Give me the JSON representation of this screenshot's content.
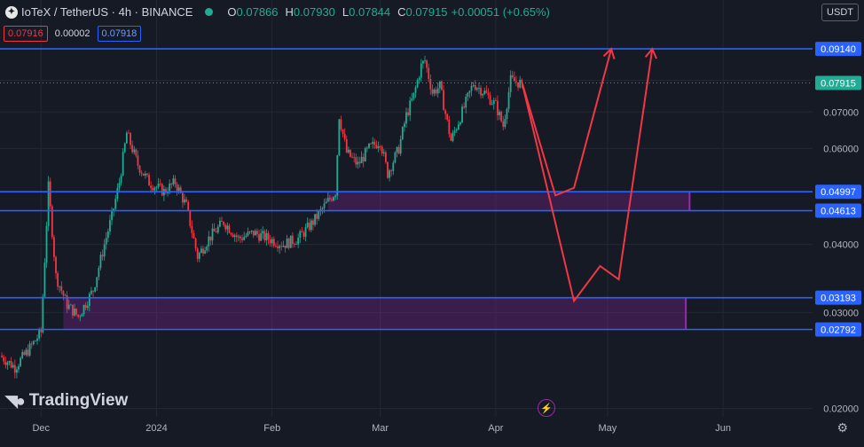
{
  "header": {
    "symbol_icon": "iotex-logo-icon",
    "title": "IoTeX / TetherUS · 4h · BINANCE",
    "status_color": "#22ab94",
    "ohlc": {
      "o_label": "O",
      "o": "0.07866",
      "h_label": "H",
      "h": "0.07930",
      "l_label": "L",
      "l": "0.07844",
      "c_label": "C",
      "c": "0.07915",
      "change": "+0.00051 (+0.65%)"
    },
    "sell_price": "0.07916",
    "spread": "0.00002",
    "buy_price": "0.07918"
  },
  "currency_button": "USDT",
  "branding": {
    "icon": "tradingview-logo-icon",
    "text": "TradingView"
  },
  "settings_icon": "gear-icon",
  "indicator_icon": "lightning-icon",
  "colors": {
    "background": "#161a25",
    "up": "#22ab94",
    "down": "#f23645",
    "level": "#2962ff",
    "zone": "#9c27b0",
    "projection": "#f23645"
  },
  "chart_data": {
    "type": "candlestick",
    "y_scale": "log",
    "ylim": [
      0.0193,
      0.096
    ],
    "xlim": [
      "2023-11-20",
      "2024-06-25"
    ],
    "x_ticks": [
      {
        "label": "Dec",
        "date": "2023-12-01"
      },
      {
        "label": "2024",
        "date": "2024-01-01"
      },
      {
        "label": "Feb",
        "date": "2024-02-01"
      },
      {
        "label": "Mar",
        "date": "2024-03-01"
      },
      {
        "label": "Apr",
        "date": "2024-04-01"
      },
      {
        "label": "May",
        "date": "2024-05-01"
      },
      {
        "label": "Jun",
        "date": "2024-06-01"
      }
    ],
    "y_ticks": [
      "0.08000",
      "0.07000",
      "0.06000",
      "0.05000",
      "0.04000",
      "0.03000",
      "0.02000"
    ],
    "price_path": [
      [
        "2023-11-20",
        0.025
      ],
      [
        "2023-11-24",
        0.0238
      ],
      [
        "2023-11-28",
        0.0258
      ],
      [
        "2023-12-01",
        0.0276
      ],
      [
        "2023-12-03",
        0.051
      ],
      [
        "2023-12-05",
        0.035
      ],
      [
        "2023-12-08",
        0.031
      ],
      [
        "2023-12-11",
        0.0295
      ],
      [
        "2023-12-15",
        0.033
      ],
      [
        "2023-12-18",
        0.04
      ],
      [
        "2023-12-20",
        0.045
      ],
      [
        "2023-12-22",
        0.052
      ],
      [
        "2023-12-24",
        0.064
      ],
      [
        "2023-12-27",
        0.056
      ],
      [
        "2023-12-30",
        0.052
      ],
      [
        "2024-01-03",
        0.05
      ],
      [
        "2024-01-06",
        0.052
      ],
      [
        "2024-01-09",
        0.047
      ],
      [
        "2024-01-12",
        0.038
      ],
      [
        "2024-01-15",
        0.041
      ],
      [
        "2024-01-19",
        0.044
      ],
      [
        "2024-01-23",
        0.041
      ],
      [
        "2024-01-27",
        0.042
      ],
      [
        "2024-01-31",
        0.041
      ],
      [
        "2024-02-04",
        0.04
      ],
      [
        "2024-02-08",
        0.041
      ],
      [
        "2024-02-12",
        0.044
      ],
      [
        "2024-02-16",
        0.048
      ],
      [
        "2024-02-18",
        0.05
      ],
      [
        "2024-02-19",
        0.069
      ],
      [
        "2024-02-21",
        0.059
      ],
      [
        "2024-02-24",
        0.056
      ],
      [
        "2024-02-27",
        0.06
      ],
      [
        "2024-03-01",
        0.062
      ],
      [
        "2024-03-03",
        0.054
      ],
      [
        "2024-03-06",
        0.06
      ],
      [
        "2024-03-08",
        0.069
      ],
      [
        "2024-03-10",
        0.075
      ],
      [
        "2024-03-12",
        0.085
      ],
      [
        "2024-03-13",
        0.087
      ],
      [
        "2024-03-15",
        0.076
      ],
      [
        "2024-03-17",
        0.078
      ],
      [
        "2024-03-20",
        0.062
      ],
      [
        "2024-03-23",
        0.07
      ],
      [
        "2024-03-26",
        0.079
      ],
      [
        "2024-03-29",
        0.076
      ],
      [
        "2024-04-01",
        0.072
      ],
      [
        "2024-04-03",
        0.066
      ],
      [
        "2024-04-05",
        0.08
      ],
      [
        "2024-04-08",
        0.079
      ]
    ],
    "last_close": 0.07915,
    "last_price_label": "0.07915",
    "levels": [
      {
        "label": "0.09140",
        "value": 0.0914
      },
      {
        "label": "0.04997",
        "value": 0.04997
      },
      {
        "label": "0.04613",
        "value": 0.04613
      },
      {
        "label": "0.03193",
        "value": 0.03193
      },
      {
        "label": "0.02792",
        "value": 0.02792
      }
    ],
    "zones": [
      {
        "from": "2024-02-16",
        "to": "2024-05-23",
        "low": 0.04613,
        "high": 0.04997
      },
      {
        "from": "2023-12-07",
        "to": "2024-05-22",
        "low": 0.02792,
        "high": 0.03193
      }
    ],
    "projections": [
      [
        [
          "2024-04-08",
          0.0795
        ],
        [
          "2024-04-17",
          0.0492
        ],
        [
          "2024-04-22",
          0.0508
        ],
        [
          "2024-05-02",
          0.0914
        ]
      ],
      [
        [
          "2024-04-08",
          0.0795
        ],
        [
          "2024-04-22",
          0.0315
        ],
        [
          "2024-04-29",
          0.0365
        ],
        [
          "2024-05-04",
          0.0345
        ],
        [
          "2024-05-13",
          0.0914
        ]
      ]
    ]
  }
}
